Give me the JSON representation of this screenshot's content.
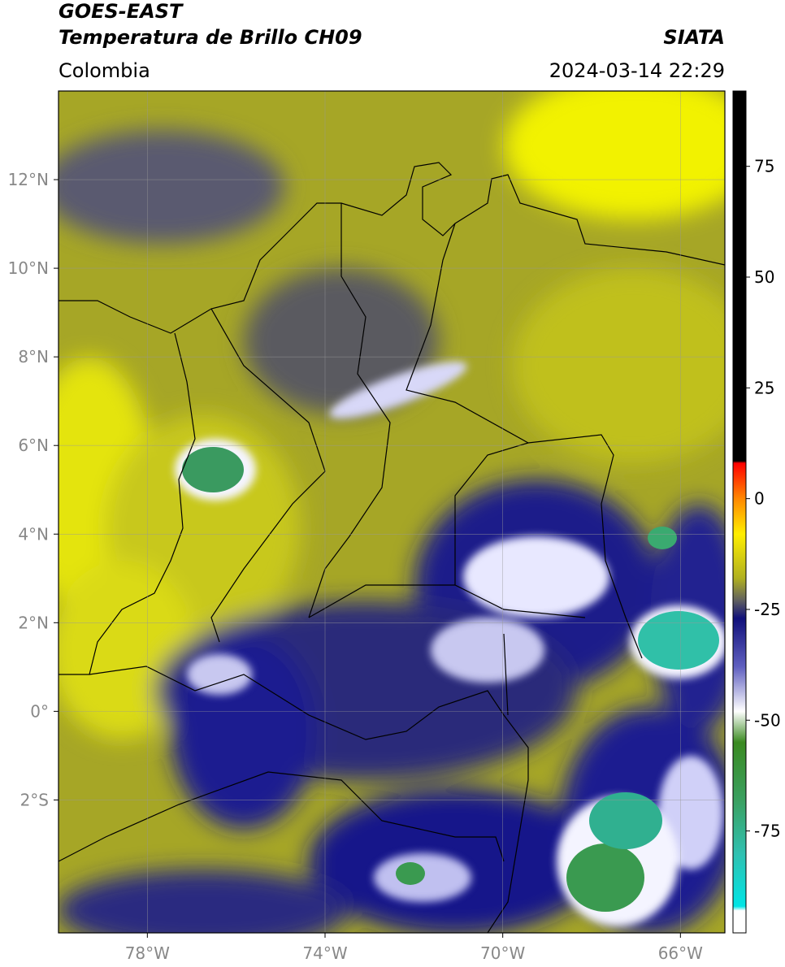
{
  "header": {
    "satellite": "GOES-EAST",
    "product": "Temperatura de Brillo CH09",
    "agency": "SIATA",
    "region": "Colombia",
    "datetime": "2024-03-14 22:29"
  },
  "map": {
    "lonlim": [
      -80,
      -65
    ],
    "latlim": [
      -5,
      14
    ],
    "lonticks": [
      {
        "value": -78,
        "label": "78°W"
      },
      {
        "value": -74,
        "label": "74°W"
      },
      {
        "value": -70,
        "label": "70°W"
      },
      {
        "value": -66,
        "label": "66°W"
      }
    ],
    "latticks": [
      {
        "value": 12,
        "label": "12°N"
      },
      {
        "value": 10,
        "label": "10°N"
      },
      {
        "value": 8,
        "label": "8°N"
      },
      {
        "value": 6,
        "label": "6°N"
      },
      {
        "value": 4,
        "label": "4°N"
      },
      {
        "value": 2,
        "label": "2°N"
      },
      {
        "value": 0,
        "label": "0°"
      },
      {
        "value": -2,
        "label": "2°S"
      }
    ],
    "grid": true
  },
  "colorbar": {
    "lim": [
      -98,
      92
    ],
    "ticks": [
      75,
      50,
      25,
      0,
      -25,
      -50,
      -75
    ],
    "colormap": [
      {
        "value": 92,
        "color": "#000000"
      },
      {
        "value": 8.5,
        "color": "#000000"
      },
      {
        "value": 8,
        "color": "#ff0000"
      },
      {
        "value": 0,
        "color": "#ff8800"
      },
      {
        "value": -8,
        "color": "#ffee00"
      },
      {
        "value": -18,
        "color": "#b0b020"
      },
      {
        "value": -23,
        "color": "#606060"
      },
      {
        "value": -27,
        "color": "#10107a"
      },
      {
        "value": -38,
        "color": "#6060c0"
      },
      {
        "value": -48,
        "color": "#ffffff"
      },
      {
        "value": -55,
        "color": "#3a8a20"
      },
      {
        "value": -68,
        "color": "#3aa060"
      },
      {
        "value": -80,
        "color": "#30c0b0"
      },
      {
        "value": -92,
        "color": "#00e5e5"
      },
      {
        "value": -93,
        "color": "#ffffff"
      },
      {
        "value": -98,
        "color": "#ffffff"
      }
    ]
  }
}
